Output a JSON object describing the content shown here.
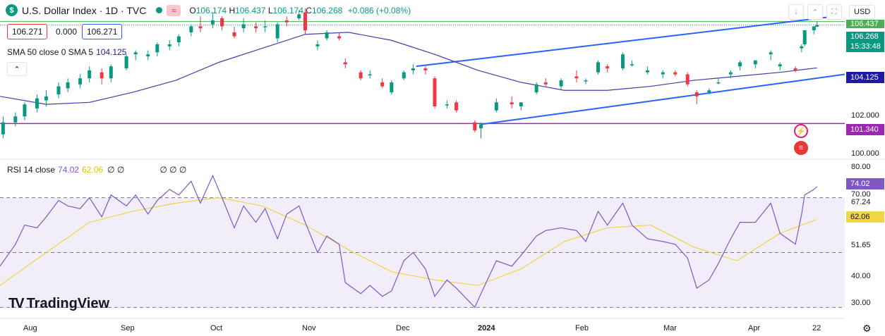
{
  "header": {
    "logo_glyph": "$",
    "title": "U.S. Dollar Index · 1D · TVC",
    "wave_glyph": "≈",
    "ohlc": {
      "o_label": "O",
      "o": "106.174",
      "h_label": "H",
      "h": "106.437",
      "l_label": "L",
      "l": "106.174",
      "c_label": "C",
      "c": "106.268",
      "change": "+0.086 (+0.08%)"
    }
  },
  "toolbar": {
    "currency": "USD",
    "icons": [
      "download-icon",
      "collapse-icon",
      "fullscreen-icon"
    ],
    "icon_glyphs": [
      "↓",
      "⌃",
      "⛶"
    ]
  },
  "price_boxes": {
    "left": "106.271",
    "middle": "0.000",
    "right": "106.271"
  },
  "sma": {
    "label": "SMA 50 close 0 SMA 5",
    "value": "104.125"
  },
  "collapse_glyph": "⌃",
  "rsi": {
    "label": "RSI 14 close",
    "value": "74.02",
    "ma_value": "62.06",
    "extras_a": "∅ ∅",
    "extras_b": "∅ ∅ ∅"
  },
  "brand": {
    "name": "TradingView",
    "mark": "TV"
  },
  "settings_glyph": "⚙",
  "price_axis": {
    "ticks": [
      "102.000",
      "100.000"
    ],
    "top_partial": "106.437",
    "current_price": "106.268",
    "countdown": "15:33:48",
    "sma_badge": "104.125",
    "hline_badge": "101.340"
  },
  "rsi_axis": {
    "ticks": [
      "80.00",
      "70.00",
      "67.24",
      "51.65",
      "40.00",
      "30.00"
    ],
    "badge_rsi": "74.02",
    "badge_ma": "62.06"
  },
  "time_axis": {
    "labels": [
      "Aug",
      "Sep",
      "Oct",
      "Nov",
      "Dec",
      "2024",
      "Feb",
      "Mar",
      "Apr",
      "22"
    ]
  },
  "colors": {
    "up": "#089981",
    "down": "#f23645",
    "sma": "#3f3fa8",
    "trend": "#2962ff",
    "hline": "#9c27b0",
    "rsi": "#7e57c2",
    "rsi_ma": "#f0d545",
    "green_level": "#4caf50"
  },
  "chart_data": [
    {
      "type": "candlestick",
      "title": "U.S. Dollar Index · 1D · TVC",
      "x_range": [
        "2023-07-26",
        "2024-04-25"
      ],
      "ylim": [
        99.7,
        106.6
      ],
      "candles": [
        [
          "2023-07-27",
          100.8,
          101.7,
          100.6,
          101.4
        ],
        [
          "2023-07-31",
          101.4,
          101.9,
          101.2,
          101.7
        ],
        [
          "2023-08-03",
          101.7,
          102.4,
          101.5,
          102.3
        ],
        [
          "2023-08-07",
          102.1,
          102.8,
          101.9,
          102.6
        ],
        [
          "2023-08-10",
          102.5,
          103.0,
          102.2,
          102.7
        ],
        [
          "2023-08-14",
          102.8,
          103.4,
          102.6,
          103.2
        ],
        [
          "2023-08-17",
          103.1,
          103.6,
          102.9,
          103.4
        ],
        [
          "2023-08-21",
          103.3,
          103.8,
          103.1,
          103.6
        ],
        [
          "2023-08-24",
          103.6,
          104.2,
          103.4,
          104.0
        ],
        [
          "2023-08-28",
          103.9,
          104.1,
          103.3,
          103.6
        ],
        [
          "2023-08-31",
          103.6,
          104.3,
          103.4,
          104.2
        ],
        [
          "2023-09-05",
          104.1,
          104.8,
          104.0,
          104.7
        ],
        [
          "2023-09-08",
          104.8,
          105.0,
          104.5,
          104.9
        ],
        [
          "2023-09-12",
          104.7,
          105.0,
          104.5,
          104.8
        ],
        [
          "2023-09-15",
          104.9,
          105.4,
          104.7,
          105.3
        ],
        [
          "2023-09-19",
          105.2,
          105.5,
          105.0,
          105.3
        ],
        [
          "2023-09-22",
          105.4,
          105.8,
          105.2,
          105.7
        ],
        [
          "2023-09-26",
          105.9,
          106.3,
          105.7,
          106.2
        ],
        [
          "2023-09-29",
          106.2,
          106.7,
          105.9,
          106.1
        ],
        [
          "2023-10-03",
          106.3,
          106.9,
          106.1,
          106.5
        ],
        [
          "2023-10-06",
          106.6,
          106.7,
          106.0,
          106.2
        ],
        [
          "2023-10-10",
          105.9,
          106.2,
          105.6,
          105.7
        ],
        [
          "2023-10-13",
          106.1,
          106.6,
          105.9,
          106.3
        ],
        [
          "2023-10-17",
          106.2,
          106.4,
          105.9,
          106.1
        ],
        [
          "2023-10-20",
          106.2,
          106.5,
          105.9,
          106.2
        ],
        [
          "2023-10-24",
          105.6,
          106.4,
          105.4,
          106.3
        ],
        [
          "2023-10-27",
          106.5,
          106.7,
          106.2,
          106.4
        ],
        [
          "2023-10-31",
          106.6,
          107.0,
          106.5,
          106.8
        ],
        [
          "2023-11-02",
          106.9,
          107.1,
          105.8,
          106.0
        ],
        [
          "2023-11-06",
          105.2,
          105.5,
          105.0,
          105.3
        ],
        [
          "2023-11-09",
          105.6,
          106.0,
          105.5,
          105.9
        ],
        [
          "2023-11-13",
          105.7,
          105.9,
          105.5,
          105.6
        ],
        [
          "2023-11-15",
          104.4,
          104.6,
          104.1,
          104.3
        ],
        [
          "2023-11-20",
          103.9,
          104.0,
          103.5,
          103.6
        ],
        [
          "2023-11-23",
          103.8,
          104.0,
          103.6,
          103.8
        ],
        [
          "2023-11-27",
          103.4,
          103.6,
          103.1,
          103.2
        ],
        [
          "2023-11-30",
          102.9,
          103.5,
          102.8,
          103.4
        ],
        [
          "2023-12-04",
          103.6,
          104.0,
          103.5,
          103.9
        ],
        [
          "2023-12-07",
          104.0,
          104.3,
          103.8,
          104.1
        ],
        [
          "2023-12-11",
          104.1,
          104.2,
          103.8,
          104.0
        ],
        [
          "2023-12-14",
          103.6,
          103.7,
          102.1,
          102.2
        ],
        [
          "2023-12-18",
          102.3,
          102.5,
          102.1,
          102.3
        ],
        [
          "2023-12-21",
          102.4,
          102.5,
          101.9,
          102.0
        ],
        [
          "2023-12-27",
          101.4,
          101.5,
          100.9,
          101.0
        ],
        [
          "2023-12-29",
          101.1,
          101.4,
          100.6,
          101.3
        ],
        [
          "2024-01-03",
          102.0,
          102.6,
          101.9,
          102.4
        ],
        [
          "2024-01-08",
          102.4,
          102.7,
          102.1,
          102.3
        ],
        [
          "2024-01-11",
          102.2,
          102.4,
          102.0,
          102.4
        ],
        [
          "2024-01-16",
          102.9,
          103.4,
          102.8,
          103.3
        ],
        [
          "2024-01-19",
          103.4,
          103.6,
          103.2,
          103.3
        ],
        [
          "2024-01-24",
          103.2,
          103.6,
          103.0,
          103.5
        ],
        [
          "2024-01-29",
          103.7,
          104.0,
          103.4,
          103.6
        ],
        [
          "2024-02-01",
          103.5,
          103.6,
          103.3,
          103.5
        ],
        [
          "2024-02-05",
          103.9,
          104.5,
          103.8,
          104.4
        ],
        [
          "2024-02-08",
          104.2,
          104.3,
          103.9,
          104.1
        ],
        [
          "2024-02-13",
          104.1,
          104.9,
          104.0,
          104.8
        ],
        [
          "2024-02-16",
          104.3,
          104.5,
          104.2,
          104.3
        ],
        [
          "2024-02-21",
          103.9,
          104.2,
          103.8,
          104.0
        ],
        [
          "2024-02-26",
          103.8,
          104.0,
          103.6,
          103.9
        ],
        [
          "2024-03-01",
          103.9,
          104.0,
          103.7,
          103.8
        ],
        [
          "2024-03-05",
          103.8,
          103.9,
          103.2,
          103.3
        ],
        [
          "2024-03-08",
          102.9,
          103.0,
          102.3,
          102.7
        ],
        [
          "2024-03-12",
          102.9,
          103.1,
          102.8,
          103.0
        ],
        [
          "2024-03-15",
          103.4,
          103.6,
          103.3,
          103.4
        ],
        [
          "2024-03-19",
          103.8,
          104.0,
          103.6,
          103.9
        ],
        [
          "2024-03-22",
          104.2,
          104.5,
          104.0,
          104.4
        ],
        [
          "2024-03-27",
          104.3,
          104.5,
          104.1,
          104.5
        ],
        [
          "2024-04-01",
          104.8,
          105.0,
          104.5,
          104.9
        ],
        [
          "2024-04-04",
          104.2,
          104.4,
          104.0,
          104.3
        ],
        [
          "2024-04-09",
          104.1,
          104.2,
          103.9,
          104.0
        ],
        [
          "2024-04-11",
          105.1,
          105.3,
          104.9,
          105.2
        ],
        [
          "2024-04-12",
          105.3,
          106.0,
          105.2,
          106.0
        ],
        [
          "2024-04-15",
          106.0,
          106.2,
          105.8,
          106.2
        ],
        [
          "2024-04-16",
          106.174,
          106.437,
          106.174,
          106.268
        ]
      ],
      "sma50": [
        [
          "2023-07-26",
          102.7
        ],
        [
          "2023-08-10",
          102.3
        ],
        [
          "2023-08-24",
          102.4
        ],
        [
          "2023-09-07",
          102.9
        ],
        [
          "2023-09-21",
          103.5
        ],
        [
          "2023-10-05",
          104.4
        ],
        [
          "2023-10-19",
          105.1
        ],
        [
          "2023-11-02",
          105.8
        ],
        [
          "2023-11-16",
          105.9
        ],
        [
          "2023-11-30",
          105.5
        ],
        [
          "2023-12-14",
          104.8
        ],
        [
          "2023-12-28",
          104.0
        ],
        [
          "2024-01-11",
          103.4
        ],
        [
          "2024-01-25",
          103.0
        ],
        [
          "2024-02-08",
          103.0
        ],
        [
          "2024-02-22",
          103.2
        ],
        [
          "2024-03-07",
          103.5
        ],
        [
          "2024-03-21",
          103.7
        ],
        [
          "2024-04-04",
          103.9
        ],
        [
          "2024-04-16",
          104.125
        ]
      ],
      "trendlines": [
        {
          "from": [
            "2023-12-08",
            104.2
          ],
          "to": [
            "2024-04-22",
            106.7
          ]
        },
        {
          "from": [
            "2023-12-29",
            101.3
          ],
          "to": [
            "2024-04-25",
            103.8
          ]
        }
      ],
      "hlines": [
        {
          "y": 101.34
        },
        {
          "y": 106.437
        }
      ],
      "yticks": [
        100.0,
        102.0
      ]
    },
    {
      "type": "line",
      "title": "RSI 14 close",
      "x_range": [
        "2023-07-26",
        "2024-04-25"
      ],
      "ylim": [
        27,
        83
      ],
      "bands": [
        30,
        70
      ],
      "midline": 50,
      "series": [
        {
          "name": "RSI",
          "points": [
            [
              "2023-07-26",
              45
            ],
            [
              "2023-07-31",
              53
            ],
            [
              "2023-08-03",
              60
            ],
            [
              "2023-08-07",
              59
            ],
            [
              "2023-08-10",
              63
            ],
            [
              "2023-08-14",
              69
            ],
            [
              "2023-08-17",
              67
            ],
            [
              "2023-08-21",
              66
            ],
            [
              "2023-08-24",
              70
            ],
            [
              "2023-08-28",
              63
            ],
            [
              "2023-08-31",
              71
            ],
            [
              "2023-09-05",
              67
            ],
            [
              "2023-09-08",
              71
            ],
            [
              "2023-09-12",
              64
            ],
            [
              "2023-09-15",
              69
            ],
            [
              "2023-09-19",
              73
            ],
            [
              "2023-09-22",
              71
            ],
            [
              "2023-09-26",
              76
            ],
            [
              "2023-09-29",
              68
            ],
            [
              "2023-10-03",
              78
            ],
            [
              "2023-10-06",
              70
            ],
            [
              "2023-10-10",
              59
            ],
            [
              "2023-10-13",
              67
            ],
            [
              "2023-10-17",
              61
            ],
            [
              "2023-10-20",
              66
            ],
            [
              "2023-10-24",
              55
            ],
            [
              "2023-10-27",
              64
            ],
            [
              "2023-10-31",
              67
            ],
            [
              "2023-11-02",
              61
            ],
            [
              "2023-11-06",
              50
            ],
            [
              "2023-11-09",
              56
            ],
            [
              "2023-11-13",
              53
            ],
            [
              "2023-11-15",
              39
            ],
            [
              "2023-11-20",
              35
            ],
            [
              "2023-11-23",
              38
            ],
            [
              "2023-11-27",
              34
            ],
            [
              "2023-11-30",
              36
            ],
            [
              "2023-12-04",
              47
            ],
            [
              "2023-12-07",
              50
            ],
            [
              "2023-12-11",
              44
            ],
            [
              "2023-12-14",
              34
            ],
            [
              "2023-12-18",
              40
            ],
            [
              "2023-12-21",
              37
            ],
            [
              "2023-12-27",
              30
            ],
            [
              "2023-12-29",
              35
            ],
            [
              "2024-01-03",
              47
            ],
            [
              "2024-01-08",
              45
            ],
            [
              "2024-01-11",
              49
            ],
            [
              "2024-01-16",
              56
            ],
            [
              "2024-01-19",
              58
            ],
            [
              "2024-01-24",
              59
            ],
            [
              "2024-01-29",
              58
            ],
            [
              "2024-02-01",
              54
            ],
            [
              "2024-02-05",
              65
            ],
            [
              "2024-02-08",
              60
            ],
            [
              "2024-02-13",
              68
            ],
            [
              "2024-02-16",
              60
            ],
            [
              "2024-02-21",
              55
            ],
            [
              "2024-02-26",
              54
            ],
            [
              "2024-03-01",
              53
            ],
            [
              "2024-03-05",
              48
            ],
            [
              "2024-03-08",
              37
            ],
            [
              "2024-03-12",
              40
            ],
            [
              "2024-03-15",
              46
            ],
            [
              "2024-03-19",
              55
            ],
            [
              "2024-03-22",
              61
            ],
            [
              "2024-03-27",
              61
            ],
            [
              "2024-04-01",
              68
            ],
            [
              "2024-04-04",
              57
            ],
            [
              "2024-04-09",
              53
            ],
            [
              "2024-04-11",
              64
            ],
            [
              "2024-04-12",
              71
            ],
            [
              "2024-04-15",
              73
            ],
            [
              "2024-04-16",
              74.02
            ]
          ]
        },
        {
          "name": "RSI-based MA",
          "points": [
            [
              "2023-07-26",
              38
            ],
            [
              "2023-08-10",
              50
            ],
            [
              "2023-08-24",
              61
            ],
            [
              "2023-09-07",
              65
            ],
            [
              "2023-09-21",
              68
            ],
            [
              "2023-10-05",
              70
            ],
            [
              "2023-10-19",
              67
            ],
            [
              "2023-11-02",
              60
            ],
            [
              "2023-11-16",
              51
            ],
            [
              "2023-11-30",
              43
            ],
            [
              "2023-12-14",
              40
            ],
            [
              "2023-12-28",
              38
            ],
            [
              "2024-01-11",
              44
            ],
            [
              "2024-01-25",
              54
            ],
            [
              "2024-02-08",
              59
            ],
            [
              "2024-02-22",
              60
            ],
            [
              "2024-03-07",
              52
            ],
            [
              "2024-03-21",
              47
            ],
            [
              "2024-04-04",
              57
            ],
            [
              "2024-04-16",
              62.06
            ]
          ]
        }
      ],
      "yticks": [
        80,
        70,
        67.24,
        51.65,
        40,
        30
      ]
    }
  ]
}
